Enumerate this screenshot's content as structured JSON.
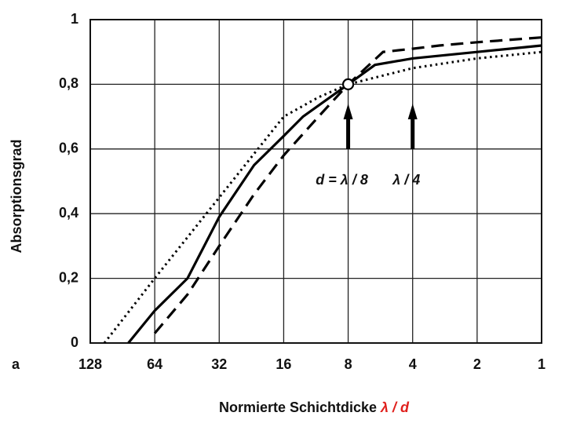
{
  "chart_data": {
    "type": "line",
    "xlabel": "Normierte Schichtdicke ",
    "xlabel_symbol": "λ / d",
    "xlabel_symbol_color": "#e0201c",
    "ylabel": "Absorptionsgrad",
    "panel_label": "a",
    "xscale": "log",
    "xlim": [
      128,
      1
    ],
    "xticks": [
      128,
      64,
      32,
      16,
      8,
      4,
      2,
      1
    ],
    "ylim": [
      0,
      1
    ],
    "yticks": [
      0,
      {
        "value": 0.2,
        "label": "0,2"
      },
      {
        "value": 0.4,
        "label": "0,4"
      },
      {
        "value": 0.6,
        "label": "0,6"
      },
      {
        "value": 0.8,
        "label": "0,8"
      },
      1
    ],
    "grid": true,
    "series": [
      {
        "color": "#000000",
        "dash": "solid",
        "x": [
          85,
          64,
          45,
          32,
          22,
          16,
          13,
          8,
          6,
          4,
          2,
          1
        ],
        "values": [
          0,
          0.1,
          0.2,
          0.39,
          0.55,
          0.64,
          0.7,
          0.8,
          0.86,
          0.88,
          0.9,
          0.92
        ]
      },
      {
        "color": "#000000",
        "dash": "dashed",
        "x": [
          64,
          45,
          32,
          22,
          16,
          11,
          8,
          5.5,
          4,
          3,
          2,
          1
        ],
        "values": [
          0.03,
          0.15,
          0.3,
          0.46,
          0.58,
          0.7,
          0.8,
          0.9,
          0.91,
          0.92,
          0.93,
          0.945
        ]
      },
      {
        "color": "#000000",
        "dash": "dotted",
        "x": [
          110,
          64,
          32,
          16,
          11,
          8,
          4,
          2,
          1
        ],
        "values": [
          0,
          0.2,
          0.45,
          0.7,
          0.76,
          0.8,
          0.85,
          0.88,
          0.9
        ]
      }
    ],
    "marker": {
      "x": 8,
      "y": 0.8
    },
    "annotations": [
      {
        "text": "d = λ / 8",
        "x": 8
      },
      {
        "text": "λ / 4",
        "x": 4
      }
    ]
  }
}
